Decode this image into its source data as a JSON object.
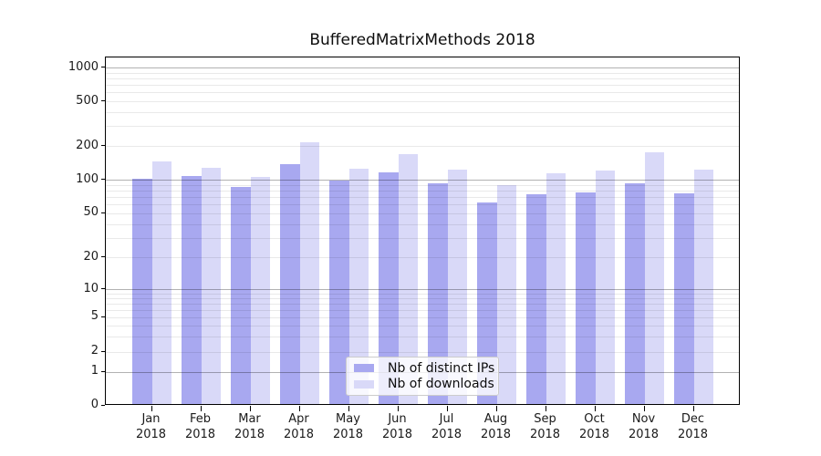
{
  "chart_data": {
    "type": "bar",
    "title": "BufferedMatrixMethods 2018",
    "year": "2018",
    "categories": [
      "Jan",
      "Feb",
      "Mar",
      "Apr",
      "May",
      "Jun",
      "Jul",
      "Aug",
      "Sep",
      "Oct",
      "Nov",
      "Dec"
    ],
    "series": [
      {
        "name": "Nb of distinct IPs",
        "color": "#a8a8f0",
        "values": [
          100,
          104,
          83,
          133,
          96,
          114,
          91,
          61,
          72,
          74,
          90,
          73
        ]
      },
      {
        "name": "Nb of downloads",
        "color": "#d9d9f8",
        "values": [
          142,
          125,
          102,
          209,
          121,
          166,
          119,
          87,
          110,
          117,
          172,
          119
        ]
      }
    ],
    "y_axis": {
      "scale": "log-like",
      "tick_values": [
        0,
        1,
        2,
        5,
        10,
        20,
        50,
        100,
        200,
        500,
        1000
      ],
      "range": [
        0,
        1000
      ]
    },
    "x_axis": {
      "label_format": "month-over-year"
    },
    "legend": {
      "position": "lower-center"
    },
    "grid": "on"
  }
}
